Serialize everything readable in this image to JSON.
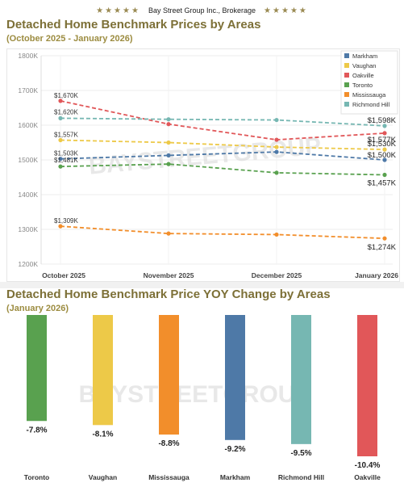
{
  "header": {
    "stars_left": "★★★★★",
    "brand": "Bay Street Group Inc., Brokerage",
    "stars_right": "★★★★★"
  },
  "watermark": "BAYSTREETGROUP",
  "chart_data": [
    {
      "type": "line",
      "title": "Detached Home Benchmark Prices by Areas",
      "subtitle": "(October 2025 - January 2026)",
      "xlabel": "",
      "ylabel": "",
      "x": [
        "October 2025",
        "November 2025",
        "December 2025",
        "January 2026"
      ],
      "y_ticks": [
        "1200K",
        "1300K",
        "1400K",
        "1500K",
        "1600K",
        "1700K",
        "1800K"
      ],
      "ylim": [
        1200,
        1800
      ],
      "grid": true,
      "legend_position": "top-right",
      "series": [
        {
          "name": "Markham",
          "color": "#4e79a7",
          "values": [
            1503,
            1513,
            1523,
            1500
          ],
          "labels": [
            "$1,503K",
            "",
            "",
            "$1,500K"
          ]
        },
        {
          "name": "Vaughan",
          "color": "#edc948",
          "values": [
            1557,
            1550,
            1537,
            1530
          ],
          "labels": [
            "$1,557K",
            "",
            "",
            "$1,530K"
          ]
        },
        {
          "name": "Oakville",
          "color": "#e15759",
          "values": [
            1670,
            1603,
            1558,
            1577
          ],
          "labels": [
            "$1,670K",
            "",
            "",
            "$1,577K"
          ]
        },
        {
          "name": "Toronto",
          "color": "#59a14f",
          "values": [
            1481,
            1488,
            1463,
            1457
          ],
          "labels": [
            "$1,481K",
            "",
            "",
            "$1,457K"
          ]
        },
        {
          "name": "Mississauga",
          "color": "#f28e2b",
          "values": [
            1309,
            1288,
            1285,
            1274
          ],
          "labels": [
            "$1,309K",
            "",
            "",
            "$1,274K"
          ]
        },
        {
          "name": "Richmond Hill",
          "color": "#76b7b2",
          "values": [
            1620,
            1617,
            1615,
            1598
          ],
          "labels": [
            "$1,620K",
            "",
            "",
            "$1,598K"
          ]
        }
      ]
    },
    {
      "type": "bar",
      "title": "Detached Home Benchmark Price YOY Change by Areas",
      "subtitle": "(January 2026)",
      "categories": [
        "Toronto",
        "Vaughan",
        "Mississauga",
        "Markham",
        "Richmond Hill",
        "Oakville"
      ],
      "values": [
        -7.8,
        -8.1,
        -8.8,
        -9.2,
        -9.5,
        -10.4
      ],
      "value_labels": [
        "-7.8%",
        "-8.1%",
        "-8.8%",
        "-9.2%",
        "-9.5%",
        "-10.4%"
      ],
      "colors": [
        "#59a14f",
        "#edc948",
        "#f28e2b",
        "#4e79a7",
        "#76b7b2",
        "#e15759"
      ],
      "ylim": [
        -10.4,
        0
      ],
      "grid": false
    }
  ]
}
